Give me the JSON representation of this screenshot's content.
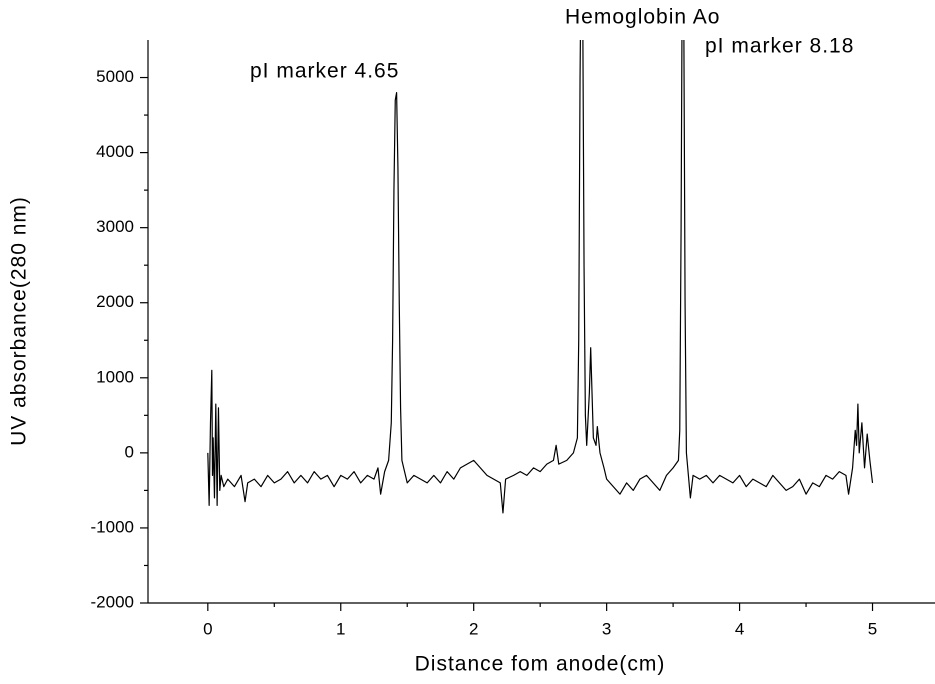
{
  "chart_data": {
    "type": "line",
    "xlabel": "Distance fom anode(cm)",
    "ylabel": "UV absorbance(280 nm)",
    "annotations": [
      "Hemoglobin Ao",
      "pI marker 4.65",
      "pI marker 8.18"
    ],
    "color": "#000000",
    "xlim": [
      -0.45,
      5.47
    ],
    "xticks": [
      0,
      1,
      2,
      3,
      4,
      5
    ],
    "xminorticks": [
      -0.5,
      0.5,
      1.5,
      2.5,
      3.5,
      4.5
    ],
    "ylim": [
      -2000,
      5500
    ],
    "yticks": [
      -2000,
      -1000,
      0,
      1000,
      2000,
      3000,
      4000,
      5000
    ],
    "yminorticks": [
      -1500,
      -500,
      500,
      1500,
      2500,
      3500,
      4500
    ],
    "x": [
      0,
      0.01,
      0.02,
      0.03,
      0.035,
      0.04,
      0.05,
      0.06,
      0.07,
      0.08,
      0.09,
      0.1,
      0.12,
      0.15,
      0.2,
      0.25,
      0.28,
      0.3,
      0.35,
      0.4,
      0.45,
      0.5,
      0.55,
      0.6,
      0.65,
      0.7,
      0.75,
      0.8,
      0.85,
      0.9,
      0.95,
      1.0,
      1.05,
      1.1,
      1.15,
      1.2,
      1.25,
      1.28,
      1.3,
      1.33,
      1.36,
      1.38,
      1.39,
      1.4,
      1.41,
      1.42,
      1.43,
      1.44,
      1.45,
      1.46,
      1.48,
      1.5,
      1.55,
      1.6,
      1.65,
      1.7,
      1.75,
      1.8,
      1.85,
      1.9,
      1.95,
      2.0,
      2.05,
      2.1,
      2.15,
      2.2,
      2.22,
      2.24,
      2.3,
      2.35,
      2.4,
      2.45,
      2.5,
      2.55,
      2.6,
      2.62,
      2.64,
      2.7,
      2.75,
      2.78,
      2.79,
      2.8,
      2.81,
      2.82,
      2.83,
      2.84,
      2.85,
      2.87,
      2.88,
      2.89,
      2.9,
      2.92,
      2.93,
      2.95,
      2.98,
      3.0,
      3.05,
      3.1,
      3.15,
      3.2,
      3.25,
      3.3,
      3.35,
      3.4,
      3.45,
      3.5,
      3.54,
      3.55,
      3.56,
      3.57,
      3.58,
      3.59,
      3.6,
      3.61,
      3.63,
      3.65,
      3.7,
      3.75,
      3.8,
      3.85,
      3.9,
      3.95,
      4.0,
      4.05,
      4.1,
      4.15,
      4.2,
      4.25,
      4.3,
      4.35,
      4.4,
      4.45,
      4.5,
      4.55,
      4.6,
      4.65,
      4.7,
      4.75,
      4.8,
      4.82,
      4.85,
      4.87,
      4.88,
      4.89,
      4.9,
      4.92,
      4.94,
      4.96,
      4.98,
      5.0
    ],
    "values": [
      0,
      -700,
      400,
      1100,
      -300,
      200,
      -600,
      650,
      -700,
      600,
      -500,
      -300,
      -450,
      -350,
      -450,
      -300,
      -650,
      -400,
      -350,
      -450,
      -300,
      -400,
      -350,
      -250,
      -400,
      -300,
      -400,
      -250,
      -350,
      -300,
      -450,
      -300,
      -350,
      -250,
      -400,
      -300,
      -350,
      -200,
      -550,
      -250,
      -100,
      400,
      1500,
      3500,
      4700,
      4800,
      3800,
      2000,
      600,
      -100,
      -250,
      -400,
      -300,
      -350,
      -400,
      -300,
      -400,
      -250,
      -350,
      -200,
      -150,
      -100,
      -200,
      -300,
      -350,
      -400,
      -800,
      -350,
      -300,
      -250,
      -300,
      -200,
      -250,
      -150,
      -100,
      100,
      -150,
      -100,
      0,
      200,
      1500,
      5000,
      7000,
      6000,
      2500,
      500,
      100,
      800,
      1400,
      800,
      200,
      100,
      350,
      0,
      -200,
      -350,
      -450,
      -550,
      -400,
      -500,
      -350,
      -300,
      -400,
      -500,
      -300,
      -200,
      -100,
      300,
      3000,
      7000,
      6000,
      2000,
      0,
      -200,
      -600,
      -300,
      -350,
      -300,
      -400,
      -300,
      -350,
      -400,
      -300,
      -450,
      -350,
      -400,
      -450,
      -300,
      -400,
      -500,
      -450,
      -350,
      -550,
      -400,
      -450,
      -300,
      -350,
      -250,
      -300,
      -550,
      -200,
      300,
      100,
      650,
      0,
      400,
      -200,
      250,
      -100,
      -400
    ]
  }
}
